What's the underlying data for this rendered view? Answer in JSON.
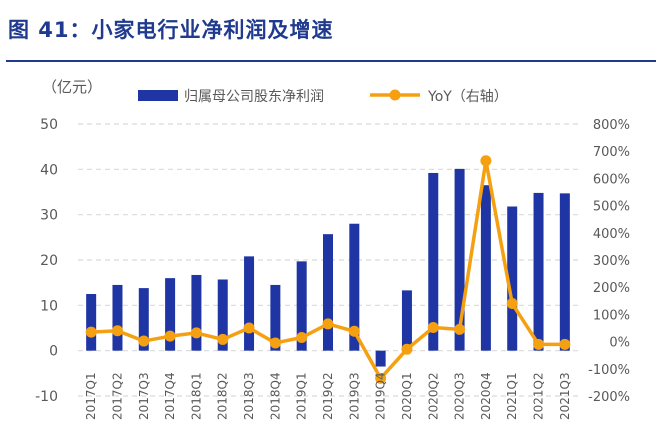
{
  "figure": {
    "title": "图 41：小家电行业净利润及增速"
  },
  "colors": {
    "bar": "#1f35a3",
    "line": "#f5a011",
    "grid": "#d9d9d9",
    "text": "#595959",
    "title": "#1f3a8f"
  },
  "chart_data": {
    "type": "bar",
    "categories": [
      "2017Q1",
      "2017Q2",
      "2017Q3",
      "2017Q4",
      "2018Q1",
      "2018Q2",
      "2018Q3",
      "2018Q4",
      "2019Q1",
      "2019Q2",
      "2019Q3",
      "2019Q4",
      "2020Q1",
      "2020Q2",
      "2020Q3",
      "2020Q4",
      "2021Q1",
      "2021Q2",
      "2021Q3"
    ],
    "ylabel": "（亿元）",
    "ylim": [
      -10,
      50
    ],
    "yticks": [
      -10,
      0,
      10,
      20,
      30,
      40,
      50
    ],
    "y2lim": [
      -200,
      800
    ],
    "y2ticks": [
      "-200%",
      "-100%",
      "0%",
      "100%",
      "200%",
      "300%",
      "400%",
      "500%",
      "600%",
      "700%",
      "800%"
    ],
    "y2_values": [
      -200,
      -100,
      0,
      100,
      200,
      300,
      400,
      500,
      600,
      700,
      800
    ],
    "legend_position": "top",
    "grid": true,
    "series": [
      {
        "name": "归属母公司股东净利润",
        "type": "bar",
        "axis": "left",
        "values": [
          12.5,
          14.5,
          13.8,
          16.0,
          16.7,
          15.7,
          20.8,
          14.5,
          19.7,
          25.7,
          28.0,
          -3.5,
          13.3,
          39.2,
          40.1,
          36.5,
          31.8,
          34.8,
          34.7
        ]
      },
      {
        "name": "YoY（右轴）",
        "type": "line",
        "axis": "right",
        "values": [
          35,
          40,
          2,
          20,
          32,
          8,
          50,
          -5,
          15,
          65,
          38,
          -135,
          -28,
          52,
          45,
          665,
          140,
          -10,
          -10
        ]
      }
    ]
  }
}
